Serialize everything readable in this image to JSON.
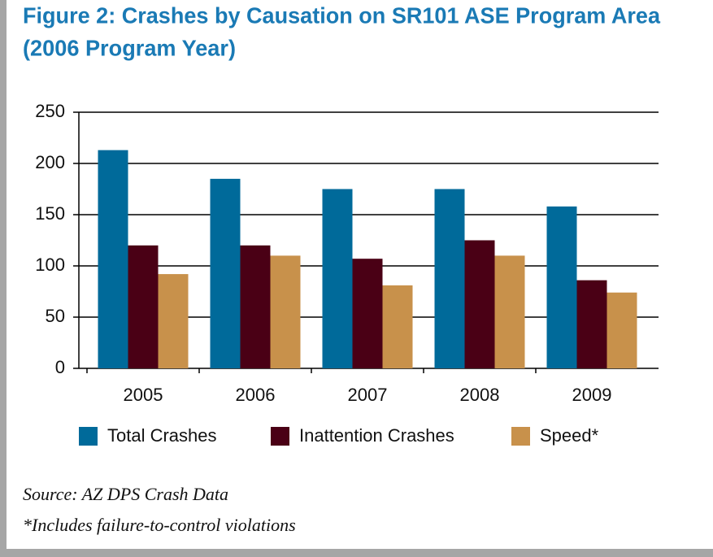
{
  "chart_data": {
    "type": "bar",
    "title": "Figure 2: Crashes by Causation on SR101 ASE Program Area",
    "subtitle": "(2006 Program Year)",
    "categories": [
      "2005",
      "2006",
      "2007",
      "2008",
      "2009"
    ],
    "series": [
      {
        "name": "Total Crashes",
        "color": "#006a9a",
        "values": [
          213,
          185,
          175,
          175,
          158
        ]
      },
      {
        "name": "Inattention Crashes",
        "color": "#4a0015",
        "values": [
          120,
          120,
          107,
          125,
          86
        ]
      },
      {
        "name": "Speed*",
        "color": "#c8914b",
        "values": [
          92,
          110,
          81,
          110,
          74
        ]
      }
    ],
    "ylim": [
      0,
      250
    ],
    "yticks": [
      0,
      50,
      100,
      150,
      200,
      250
    ],
    "grid": true,
    "legend": "bottom",
    "notes": [
      "Source: AZ DPS Crash Data",
      "*Includes failure-to-control violations"
    ]
  }
}
